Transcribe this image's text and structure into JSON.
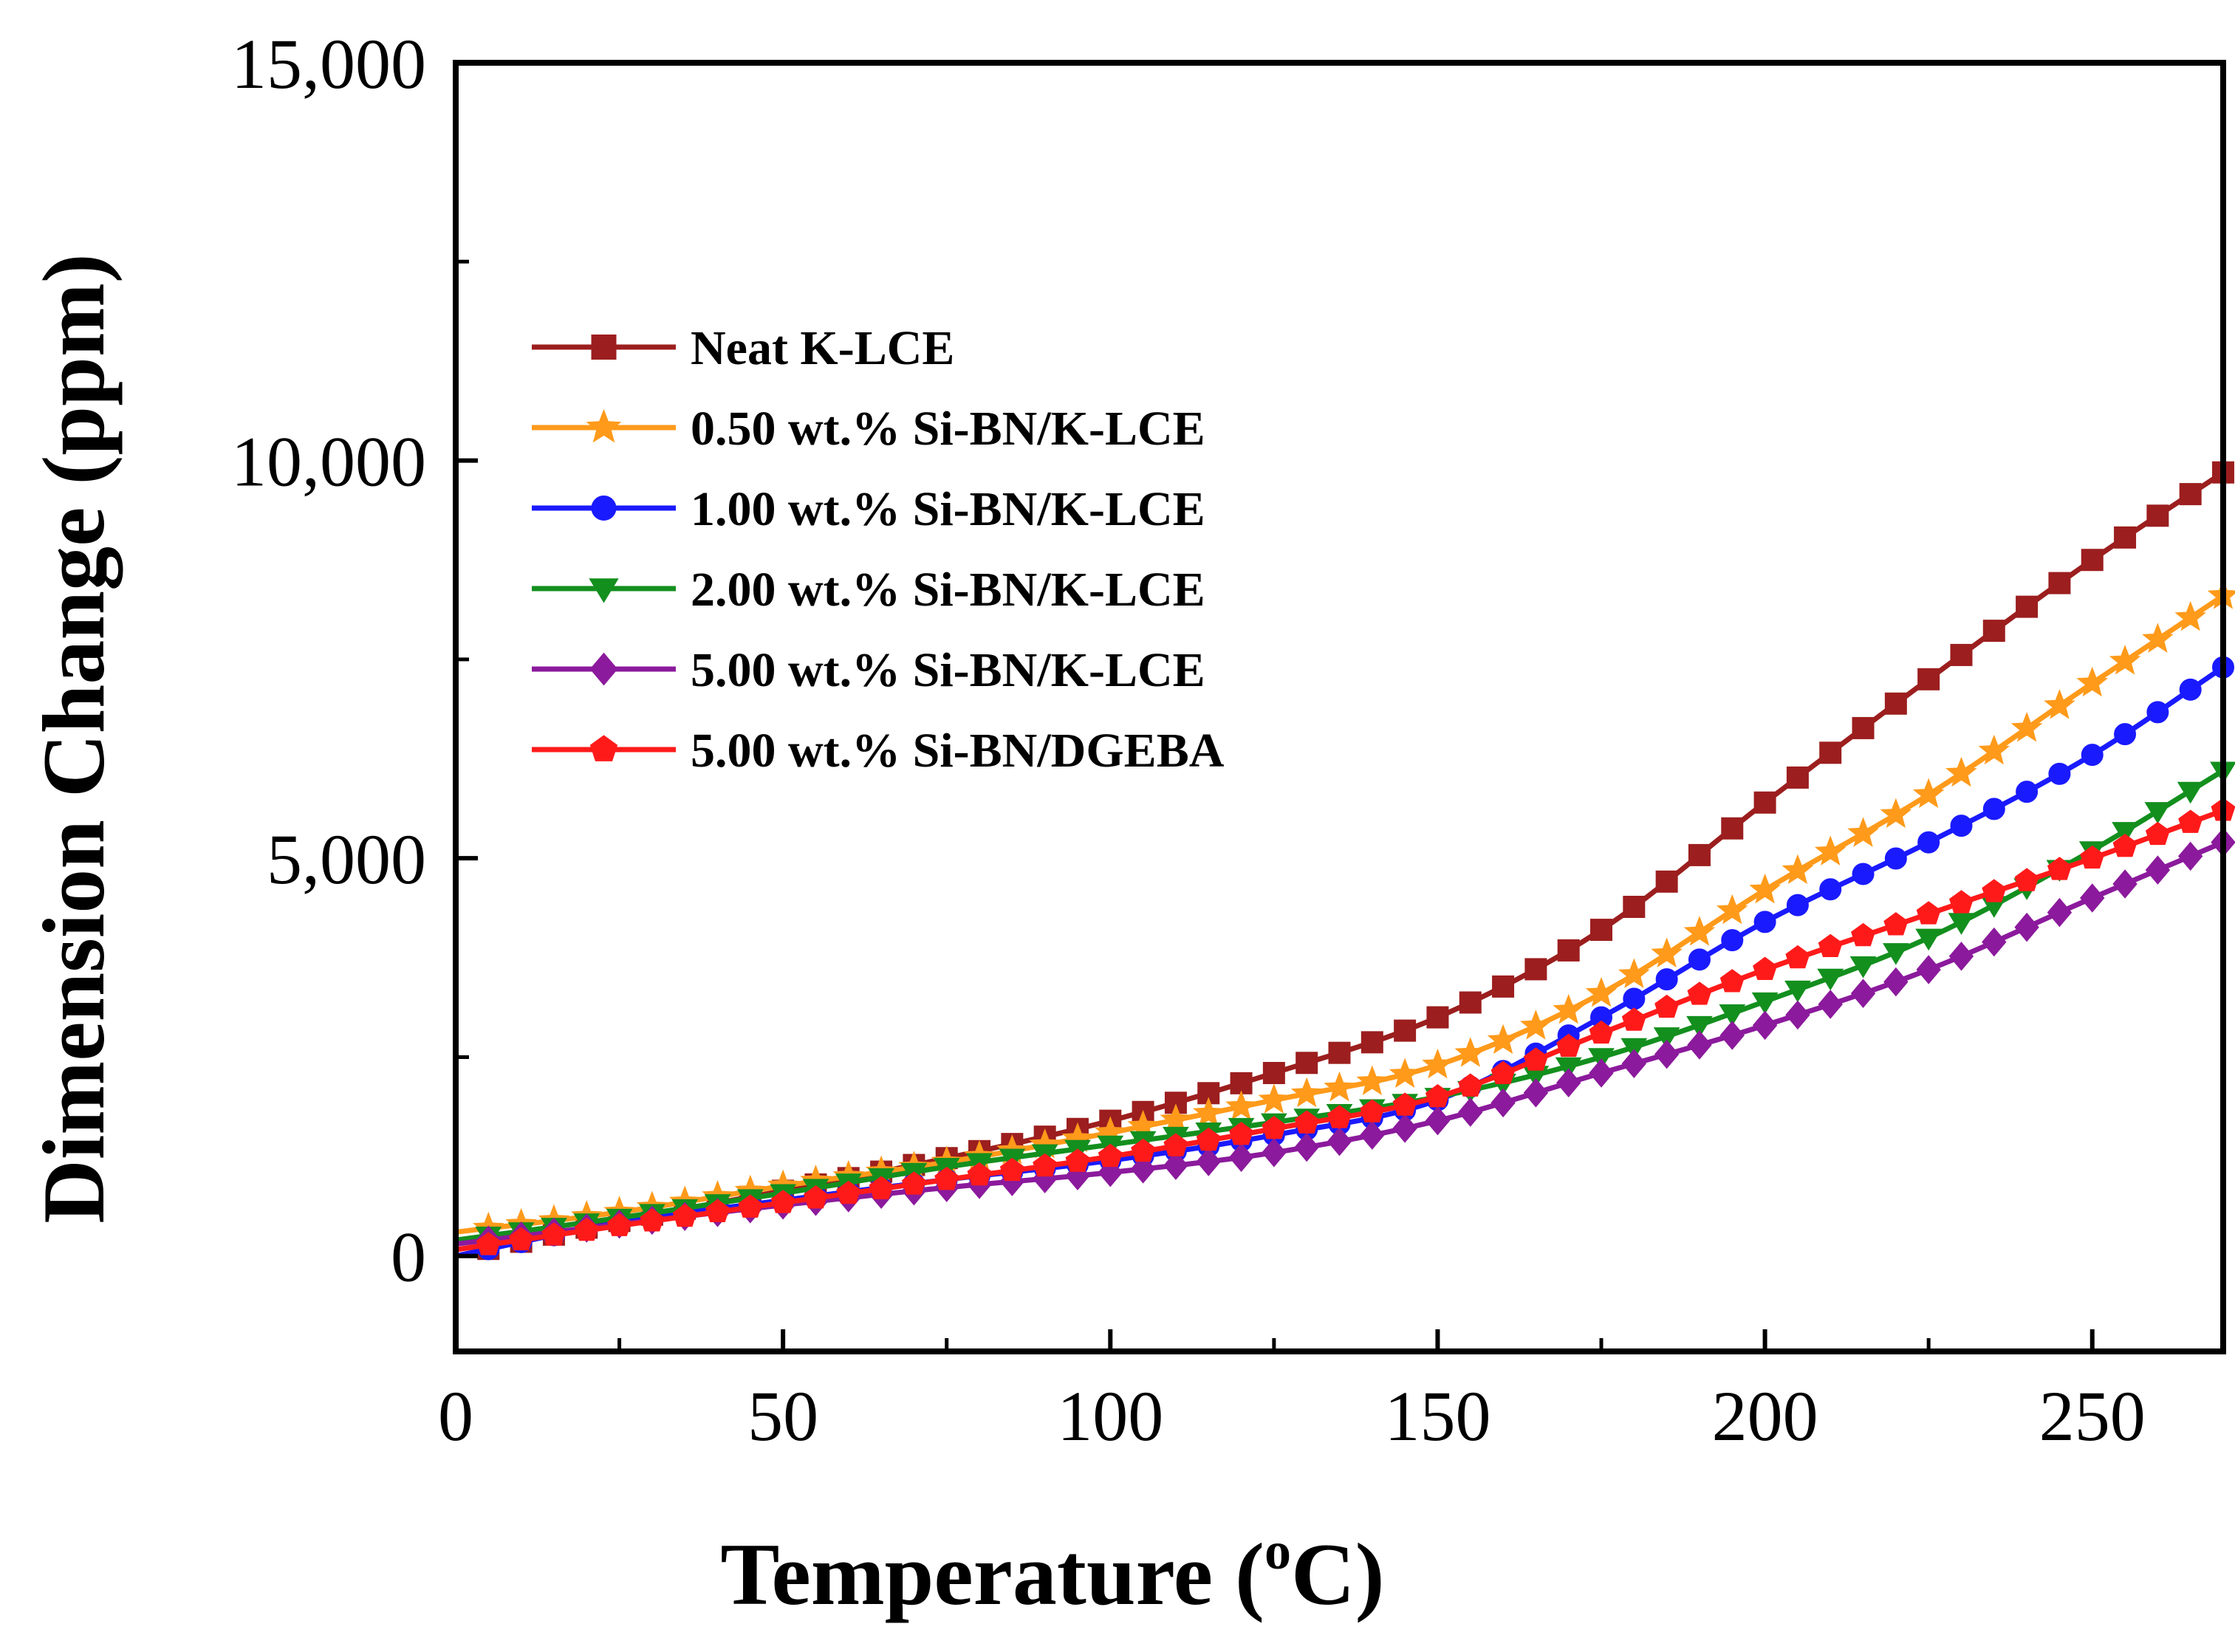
{
  "chart_data": {
    "type": "line",
    "xlabel": "Temperature (",
    "xlabel_degree": "o",
    "xlabel_unit": "C)",
    "ylabel": "Dimension Change (ppm)",
    "xlim": [
      0,
      270
    ],
    "ylim": [
      -1200,
      15000
    ],
    "xticks": [
      0,
      50,
      100,
      150,
      200,
      250
    ],
    "yticks": [
      0,
      5000,
      10000,
      15000
    ],
    "xtick_labels": [
      "0",
      "50",
      "100",
      "150",
      "200",
      "250"
    ],
    "ytick_labels": [
      "0",
      "5,000",
      "10,000",
      "15,000"
    ],
    "legend_position": "upper-left",
    "x": [
      0,
      25,
      50,
      75,
      100,
      125,
      150,
      175,
      200,
      225,
      250,
      270
    ],
    "series": [
      {
        "name": "Neat K-LCE",
        "color": "#9c1e1e",
        "marker": "square",
        "values": [
          0,
          440,
          820,
          1230,
          1700,
          2300,
          3000,
          4100,
          5700,
          7250,
          8750,
          9850
        ]
      },
      {
        "name": "0.50 wt.% Si-BN/K-LCE",
        "color": "#ff9a1a",
        "marker": "star",
        "values": [
          300,
          550,
          880,
          1180,
          1550,
          1960,
          2400,
          3300,
          4600,
          5800,
          7200,
          8300
        ]
      },
      {
        "name": "1.00 wt.% Si-BN/K-LCE",
        "color": "#1a1aff",
        "marker": "circle",
        "values": [
          0,
          420,
          700,
          960,
          1200,
          1520,
          1960,
          3000,
          4200,
          5200,
          6300,
          7400
        ]
      },
      {
        "name": "2.00 wt.% Si-BN/K-LCE",
        "color": "#138f1e",
        "marker": "triangle-down",
        "values": [
          200,
          480,
          790,
          1120,
          1400,
          1680,
          2000,
          2500,
          3200,
          4000,
          5100,
          6100
        ]
      },
      {
        "name": "5.00 wt.% Si-BN/K-LCE",
        "color": "#8b1a9c",
        "marker": "diamond",
        "values": [
          150,
          400,
          640,
          860,
          1050,
          1300,
          1700,
          2300,
          2900,
          3600,
          4500,
          5200
        ]
      },
      {
        "name": "5.00 wt.% Si-BN/DGEBA",
        "color": "#ff1a1a",
        "marker": "pentagon",
        "values": [
          80,
          380,
          670,
          960,
          1250,
          1600,
          2000,
          2800,
          3600,
          4300,
          5000,
          5600
        ]
      }
    ]
  }
}
